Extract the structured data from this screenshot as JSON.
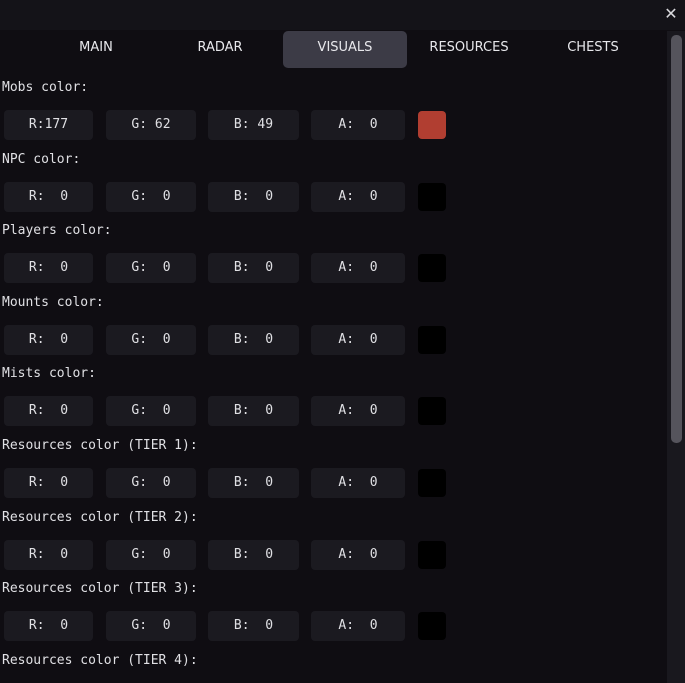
{
  "window": {
    "close_icon": "close-icon"
  },
  "tabs": [
    {
      "label": "MAIN",
      "active": false
    },
    {
      "label": "RADAR",
      "active": false
    },
    {
      "label": "VISUALS",
      "active": true
    },
    {
      "label": "RESOURCES",
      "active": false
    },
    {
      "label": "CHESTS",
      "active": false
    }
  ],
  "sections": [
    {
      "label": "Mobs color:",
      "r": "R:177",
      "g": "G: 62",
      "b": "B: 49",
      "a": "A:  0",
      "swatch": "#b13e31"
    },
    {
      "label": "NPC color:",
      "r": "R:  0",
      "g": "G:  0",
      "b": "B:  0",
      "a": "A:  0",
      "swatch": "#000000"
    },
    {
      "label": "Players color:",
      "r": "R:  0",
      "g": "G:  0",
      "b": "B:  0",
      "a": "A:  0",
      "swatch": "#000000"
    },
    {
      "label": "Mounts color:",
      "r": "R:  0",
      "g": "G:  0",
      "b": "B:  0",
      "a": "A:  0",
      "swatch": "#000000"
    },
    {
      "label": "Mists color:",
      "r": "R:  0",
      "g": "G:  0",
      "b": "B:  0",
      "a": "A:  0",
      "swatch": "#000000"
    },
    {
      "label": "Resources color (TIER 1):",
      "r": "R:  0",
      "g": "G:  0",
      "b": "B:  0",
      "a": "A:  0",
      "swatch": "#000000"
    },
    {
      "label": "Resources color (TIER 2):",
      "r": "R:  0",
      "g": "G:  0",
      "b": "B:  0",
      "a": "A:  0",
      "swatch": "#000000"
    },
    {
      "label": "Resources color (TIER 3):",
      "r": "R:  0",
      "g": "G:  0",
      "b": "B:  0",
      "a": "A:  0",
      "swatch": "#000000"
    },
    {
      "label": "Resources color (TIER 4):"
    }
  ],
  "scrollbar": {
    "position_percent": 0
  }
}
